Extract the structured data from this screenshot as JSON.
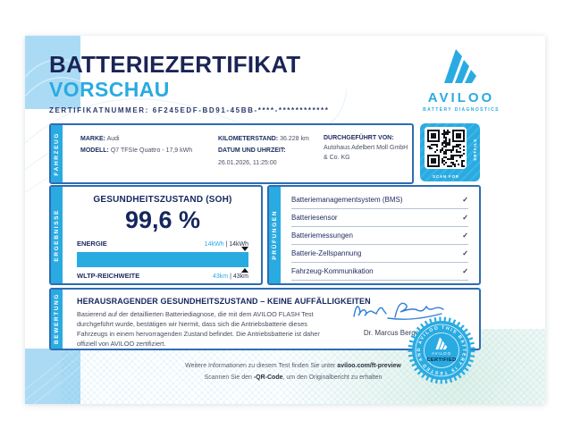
{
  "brand": {
    "name": "AVILOO",
    "tagline": "BATTERY DIAGNOSTICS",
    "accent_color": "#29abe2",
    "navy_color": "#1b2455"
  },
  "header": {
    "title": "BATTERIEZERTIFIKAT",
    "subtitle": "VORSCHAU",
    "cert_label": "ZERTIFIKATNUMMER:",
    "cert_number": "6F245EDF-BD91-45BB-****-************"
  },
  "fahrzeug": {
    "section_label": "FAHRZEUG",
    "marke_label": "MARKE:",
    "marke": "Audi",
    "modell_label": "MODELL:",
    "modell": "Q7 TFSIe Quattro - 17,9 kWh",
    "km_label": "KILOMETERSTAND:",
    "km": "36.228 km",
    "datum_label": "DATUM UND UHRZEIT:",
    "datum": "26.01.2026, 11:25:00",
    "durchgefuehrt_label": "DURCHGEFÜHRT VON:",
    "durchgefuehrt": "Autohaus Adelbert Moll GmbH & Co. KG",
    "qr_caption_bottom": "SCAN FOR",
    "qr_caption_side": "DETAILS"
  },
  "ergebnisse": {
    "section_label": "ERGEBNISSE",
    "soh_title": "GESUNDHEITSZUSTAND (SOH)",
    "soh_value": "99,6 %",
    "energie_label": "ENERGIE",
    "energie_current": "14kWh",
    "sep1": "|",
    "energie_total": "14kWh",
    "wltp_label": "WLTP-REICHWEITE",
    "wltp_current": "43km",
    "sep2": "|",
    "wltp_total": "43km"
  },
  "pruefungen": {
    "section_label": "PRÜFUNGEN",
    "check": "✓",
    "items": [
      "Batteriemanagementsystem (BMS)",
      "Batteriesensor",
      "Batteriemessungen",
      "Batterie-Zellspannung",
      "Fahrzeug-Kommunikation"
    ]
  },
  "bewertung": {
    "section_label": "BEWERTUNG",
    "headline": "HERAUSRAGENDER GESUNDHEITSZUSTAND – KEINE AUFFÄLLIGKEITEN",
    "body": "Basierend auf der detaillierten Batteriediagnose, die mit dem AVILOO FLASH Test durchgeführt wurde, bestätigen wir hiermit, dass sich die Antriebsbatterie dieses Fahrzeugs in einem hervorragenden Zustand befindet. Die Antriebsbatterie ist daher offiziell von AVILOO zertifiziert.",
    "signer": "Dr. Marcus Berger, CEO"
  },
  "badge": {
    "ring_text": "THIS BATTERY IS TESTED AND AVILOO CERTIFIED",
    "brand": "AVILOO",
    "label": "CERTIFIED"
  },
  "footer": {
    "line1_prefix": "Weitere Informationen zu diesem Test finden Sie unter ",
    "line1_link": "aviloo.com/ft-preview",
    "line2_prefix": "Scannen Sie den ",
    "line2_bold": "-QR-Code",
    "line2_suffix": ", um den Originalbericht zu erhalten"
  }
}
